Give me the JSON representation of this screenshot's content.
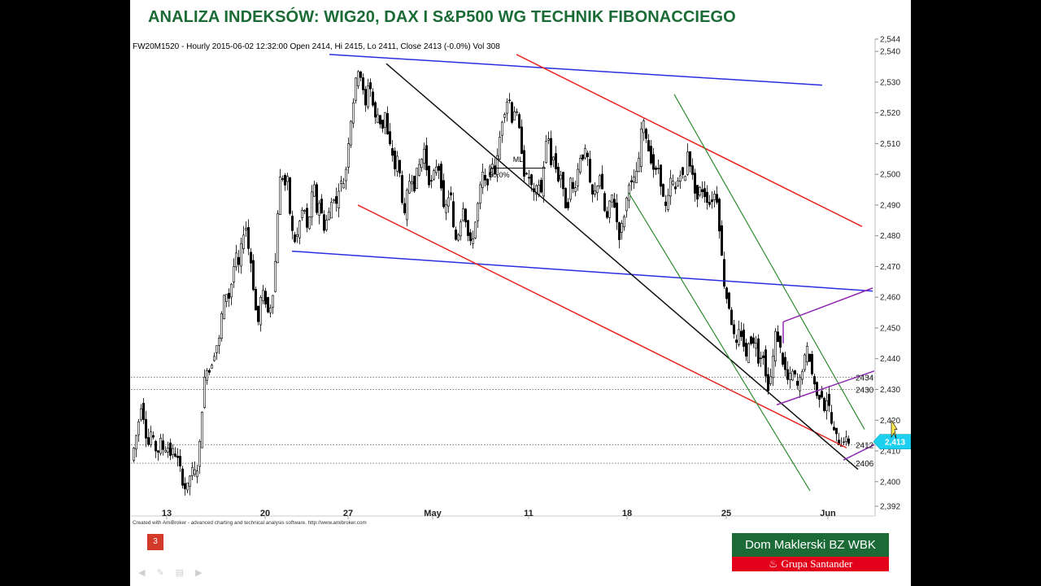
{
  "slide": {
    "title": "ANALIZA INDEKSÓW: WIG20, DAX I S&P500 WG TECHNIK FIBONACCIEGO",
    "page_number": "3",
    "credits": "Created with AmiBroker - advanced charting and technical analysis software. http://www.amibroker.com",
    "logo_top": "Dom Maklerski BZ WBK",
    "logo_bottom": "Grupa Santander"
  },
  "colors": {
    "title": "#1a6b35",
    "channel_red": "#e8231c",
    "channel_blue": "#2a2ee0",
    "channel_green": "#2e8b2e",
    "channel_purple": "#8e2ab0",
    "trend_black": "#111111",
    "price_tag": "#1ed0ef"
  },
  "chart_data": {
    "type": "candlestick",
    "info": "FW20M1520 - Hourly 2015-06-02 12:32:00 Open 2414, Hi 2415, Lo 2411, Close 2413 (-0.0%) Vol 308",
    "symbol": "FW20M1520",
    "interval": "Hourly",
    "ohlc_last": {
      "open": 2414,
      "high": 2415,
      "low": 2411,
      "close": 2413,
      "change": "-0.0%",
      "volume": 308
    },
    "ylim": [
      2392,
      2544
    ],
    "y_ticks": [
      "2,392",
      "2,400",
      "2,410",
      "2,420",
      "2,430",
      "2,440",
      "2,450",
      "2,460",
      "2,470",
      "2,480",
      "2,490",
      "2,500",
      "2,510",
      "2,520",
      "2,530",
      "2,540",
      "2,544"
    ],
    "x_ticks": [
      "13",
      "20",
      "27",
      "May",
      "11",
      "18",
      "25",
      "Jun"
    ],
    "last_price_label": "2,413",
    "horizontal_levels": [
      {
        "value": 2434,
        "label": "2434"
      },
      {
        "value": 2430,
        "label": "2430"
      },
      {
        "value": 2412,
        "label": "2412"
      },
      {
        "value": 2406,
        "label": "2406"
      }
    ],
    "annotations": [
      {
        "text": "ML"
      },
      {
        "text": "50.0%"
      }
    ],
    "price_path": [
      [
        0,
        2407
      ],
      [
        4,
        2412
      ],
      [
        8,
        2418
      ],
      [
        12,
        2425
      ],
      [
        16,
        2420
      ],
      [
        20,
        2411
      ],
      [
        24,
        2416
      ],
      [
        28,
        2412
      ],
      [
        32,
        2409
      ],
      [
        36,
        2413
      ],
      [
        40,
        2410
      ],
      [
        44,
        2412
      ],
      [
        48,
        2409
      ],
      [
        52,
        2410
      ],
      [
        56,
        2408
      ],
      [
        60,
        2404
      ],
      [
        64,
        2399
      ],
      [
        68,
        2397
      ],
      [
        72,
        2402
      ],
      [
        76,
        2404
      ],
      [
        80,
        2402
      ],
      [
        84,
        2412
      ],
      [
        88,
        2428
      ],
      [
        92,
        2438
      ],
      [
        96,
        2436
      ],
      [
        100,
        2440
      ],
      [
        104,
        2444
      ],
      [
        108,
        2446
      ],
      [
        112,
        2457
      ],
      [
        116,
        2462
      ],
      [
        120,
        2460
      ],
      [
        124,
        2466
      ],
      [
        128,
        2474
      ],
      [
        132,
        2470
      ],
      [
        136,
        2478
      ],
      [
        140,
        2485
      ],
      [
        144,
        2476
      ],
      [
        148,
        2470
      ],
      [
        152,
        2457
      ],
      [
        156,
        2452
      ],
      [
        160,
        2462
      ],
      [
        164,
        2460
      ],
      [
        168,
        2455
      ],
      [
        172,
        2458
      ],
      [
        176,
        2466
      ],
      [
        180,
        2488
      ],
      [
        184,
        2502
      ],
      [
        188,
        2496
      ],
      [
        192,
        2498
      ],
      [
        196,
        2484
      ],
      [
        200,
        2478
      ],
      [
        204,
        2480
      ],
      [
        208,
        2486
      ],
      [
        212,
        2490
      ],
      [
        216,
        2482
      ],
      [
        220,
        2488
      ],
      [
        224,
        2498
      ],
      [
        228,
        2488
      ],
      [
        232,
        2492
      ],
      [
        236,
        2482
      ],
      [
        240,
        2485
      ],
      [
        244,
        2488
      ],
      [
        248,
        2494
      ],
      [
        252,
        2490
      ],
      [
        256,
        2498
      ],
      [
        260,
        2496
      ],
      [
        264,
        2502
      ],
      [
        268,
        2514
      ],
      [
        272,
        2522
      ],
      [
        276,
        2530
      ],
      [
        280,
        2536
      ],
      [
        284,
        2528
      ],
      [
        288,
        2522
      ],
      [
        292,
        2532
      ],
      [
        296,
        2524
      ],
      [
        300,
        2518
      ],
      [
        304,
        2520
      ],
      [
        308,
        2514
      ],
      [
        312,
        2520
      ],
      [
        316,
        2510
      ],
      [
        320,
        2508
      ],
      [
        324,
        2502
      ],
      [
        328,
        2506
      ],
      [
        332,
        2494
      ],
      [
        336,
        2486
      ],
      [
        340,
        2496
      ],
      [
        344,
        2500
      ],
      [
        348,
        2496
      ],
      [
        352,
        2502
      ],
      [
        356,
        2504
      ],
      [
        360,
        2508
      ],
      [
        364,
        2500
      ],
      [
        368,
        2496
      ],
      [
        372,
        2500
      ],
      [
        376,
        2504
      ],
      [
        380,
        2500
      ],
      [
        384,
        2488
      ],
      [
        388,
        2490
      ],
      [
        392,
        2496
      ],
      [
        396,
        2482
      ],
      [
        400,
        2478
      ],
      [
        404,
        2484
      ],
      [
        408,
        2490
      ],
      [
        412,
        2484
      ],
      [
        416,
        2476
      ],
      [
        420,
        2480
      ],
      [
        424,
        2486
      ],
      [
        428,
        2494
      ],
      [
        432,
        2500
      ],
      [
        436,
        2496
      ],
      [
        440,
        2500
      ],
      [
        444,
        2504
      ],
      [
        448,
        2500
      ],
      [
        452,
        2510
      ],
      [
        456,
        2518
      ],
      [
        460,
        2522
      ],
      [
        464,
        2526
      ],
      [
        468,
        2518
      ],
      [
        472,
        2522
      ],
      [
        476,
        2516
      ],
      [
        480,
        2508
      ],
      [
        484,
        2498
      ],
      [
        488,
        2500
      ],
      [
        492,
        2496
      ],
      [
        496,
        2492
      ],
      [
        500,
        2498
      ],
      [
        504,
        2494
      ],
      [
        508,
        2506
      ],
      [
        512,
        2514
      ],
      [
        516,
        2504
      ],
      [
        520,
        2506
      ],
      [
        524,
        2498
      ],
      [
        528,
        2500
      ],
      [
        532,
        2492
      ],
      [
        536,
        2488
      ],
      [
        540,
        2498
      ],
      [
        544,
        2494
      ],
      [
        548,
        2500
      ],
      [
        552,
        2506
      ],
      [
        556,
        2506
      ],
      [
        560,
        2508
      ],
      [
        564,
        2496
      ],
      [
        568,
        2492
      ],
      [
        572,
        2496
      ],
      [
        576,
        2500
      ],
      [
        580,
        2492
      ],
      [
        584,
        2484
      ],
      [
        588,
        2490
      ],
      [
        592,
        2494
      ],
      [
        596,
        2486
      ],
      [
        600,
        2480
      ],
      [
        604,
        2484
      ],
      [
        608,
        2490
      ],
      [
        612,
        2498
      ],
      [
        616,
        2496
      ],
      [
        620,
        2500
      ],
      [
        624,
        2504
      ],
      [
        628,
        2518
      ],
      [
        632,
        2514
      ],
      [
        636,
        2508
      ],
      [
        640,
        2504
      ],
      [
        644,
        2500
      ],
      [
        648,
        2502
      ],
      [
        652,
        2496
      ],
      [
        656,
        2488
      ],
      [
        660,
        2492
      ],
      [
        664,
        2500
      ],
      [
        668,
        2494
      ],
      [
        672,
        2498
      ],
      [
        676,
        2502
      ],
      [
        680,
        2496
      ],
      [
        684,
        2508
      ],
      [
        688,
        2502
      ],
      [
        692,
        2496
      ],
      [
        696,
        2492
      ],
      [
        700,
        2496
      ],
      [
        704,
        2494
      ],
      [
        708,
        2492
      ],
      [
        712,
        2490
      ],
      [
        716,
        2494
      ],
      [
        720,
        2492
      ],
      [
        724,
        2480
      ],
      [
        728,
        2466
      ],
      [
        732,
        2460
      ],
      [
        736,
        2456
      ],
      [
        740,
        2448
      ],
      [
        744,
        2444
      ],
      [
        748,
        2450
      ],
      [
        752,
        2446
      ],
      [
        756,
        2440
      ],
      [
        760,
        2448
      ],
      [
        764,
        2444
      ],
      [
        768,
        2446
      ],
      [
        772,
        2438
      ],
      [
        776,
        2444
      ],
      [
        780,
        2434
      ],
      [
        784,
        2430
      ],
      [
        788,
        2438
      ],
      [
        792,
        2448
      ],
      [
        796,
        2446
      ],
      [
        800,
        2440
      ],
      [
        804,
        2436
      ],
      [
        808,
        2432
      ],
      [
        812,
        2436
      ],
      [
        816,
        2434
      ],
      [
        820,
        2430
      ],
      [
        824,
        2436
      ],
      [
        828,
        2440
      ],
      [
        832,
        2444
      ],
      [
        836,
        2436
      ],
      [
        840,
        2432
      ],
      [
        844,
        2426
      ],
      [
        848,
        2430
      ],
      [
        852,
        2424
      ],
      [
        856,
        2428
      ],
      [
        860,
        2420
      ],
      [
        864,
        2416
      ],
      [
        868,
        2414
      ],
      [
        872,
        2412
      ],
      [
        876,
        2414
      ],
      [
        880,
        2413
      ]
    ],
    "lines": [
      {
        "name": "",
        "color": "blue",
        "points": [
          [
            242,
            2539
          ],
          [
            848,
            2529
          ]
        ]
      },
      {
        "name": "",
        "color": "blue",
        "points": [
          [
            196,
            2475
          ],
          [
            910,
            2462
          ]
        ]
      },
      {
        "name": "",
        "color": "red",
        "points": [
          [
            472,
            2539
          ],
          [
            897,
            2483
          ]
        ]
      },
      {
        "name": "",
        "color": "red",
        "points": [
          [
            277,
            2490
          ],
          [
            878,
            2411
          ]
        ]
      },
      {
        "name": "",
        "color": "black",
        "points": [
          [
            312,
            2536
          ],
          [
            892,
            2404
          ]
        ]
      },
      {
        "name": "",
        "color": "green",
        "points": [
          [
            666,
            2526
          ],
          [
            900,
            2417
          ]
        ]
      },
      {
        "name": "",
        "color": "green",
        "points": [
          [
            610,
            2494
          ],
          [
            833,
            2397
          ]
        ]
      },
      {
        "name": "",
        "color": "purple",
        "points": [
          [
            800,
            2452
          ],
          [
            910,
            2463
          ]
        ]
      },
      {
        "name": "",
        "color": "purple",
        "points": [
          [
            792,
            2425
          ],
          [
            912,
            2436
          ]
        ]
      },
      {
        "name": "",
        "color": "purple",
        "points": [
          [
            874,
            2407
          ],
          [
            912,
            2412
          ]
        ]
      }
    ]
  }
}
